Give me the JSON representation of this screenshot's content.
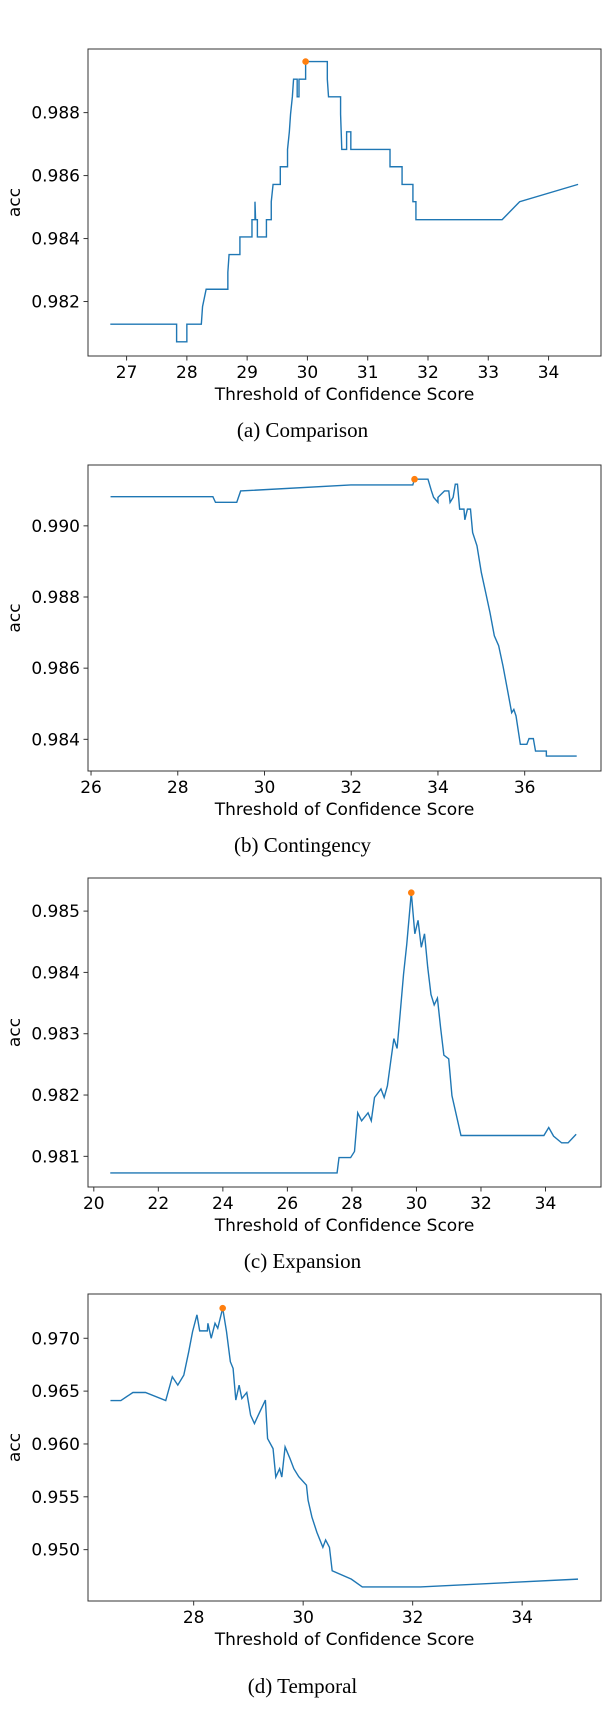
{
  "colors": {
    "line": "#1f77b4",
    "marker": "#ff7f0e",
    "axes": "#333333"
  },
  "chart_data": [
    {
      "type": "line",
      "caption": "(a) Comparison",
      "xlabel": "Threshold of Confidence Score",
      "ylabel": "acc",
      "xlim": [
        26.36,
        34.87
      ],
      "ylim": [
        0.98027,
        0.99002
      ],
      "xticks": [
        27,
        28,
        29,
        30,
        31,
        32,
        33,
        34
      ],
      "xtick_labels": [
        "27",
        "28",
        "29",
        "30",
        "31",
        "32",
        "33",
        "34"
      ],
      "yticks": [
        0.982,
        0.984,
        0.986,
        0.988
      ],
      "ytick_labels": [
        "0.982",
        "0.984",
        "0.986",
        "0.988"
      ],
      "grid": false,
      "series": [
        {
          "points": [
            [
              26.73,
              0.98128
            ],
            [
              27.83,
              0.98128
            ],
            [
              27.83,
              0.98072
            ],
            [
              28.0,
              0.98072
            ],
            [
              28.0,
              0.98128
            ],
            [
              28.24,
              0.98128
            ],
            [
              28.26,
              0.98184
            ],
            [
              28.32,
              0.98239
            ],
            [
              28.68,
              0.98239
            ],
            [
              28.68,
              0.98293
            ],
            [
              28.7,
              0.98349
            ],
            [
              28.88,
              0.98349
            ],
            [
              28.88,
              0.98405
            ],
            [
              29.08,
              0.98405
            ],
            [
              29.08,
              0.9846
            ],
            [
              29.13,
              0.9846
            ],
            [
              29.13,
              0.98517
            ],
            [
              29.14,
              0.9846
            ],
            [
              29.17,
              0.9846
            ],
            [
              29.17,
              0.98405
            ],
            [
              29.32,
              0.98405
            ],
            [
              29.32,
              0.9846
            ],
            [
              29.4,
              0.9846
            ],
            [
              29.4,
              0.98517
            ],
            [
              29.43,
              0.98572
            ],
            [
              29.55,
              0.98572
            ],
            [
              29.55,
              0.98628
            ],
            [
              29.67,
              0.98628
            ],
            [
              29.67,
              0.98683
            ],
            [
              29.7,
              0.98739
            ],
            [
              29.72,
              0.98795
            ],
            [
              29.75,
              0.9885
            ],
            [
              29.77,
              0.98906
            ],
            [
              29.83,
              0.98906
            ],
            [
              29.83,
              0.9885
            ],
            [
              29.86,
              0.9885
            ],
            [
              29.86,
              0.98906
            ],
            [
              29.97,
              0.98906
            ],
            [
              29.97,
              0.98962
            ],
            [
              30.33,
              0.98962
            ],
            [
              30.33,
              0.98906
            ],
            [
              30.35,
              0.9885
            ],
            [
              30.55,
              0.9885
            ],
            [
              30.55,
              0.98795
            ],
            [
              30.57,
              0.98683
            ],
            [
              30.65,
              0.98683
            ],
            [
              30.65,
              0.98739
            ],
            [
              30.72,
              0.98739
            ],
            [
              30.72,
              0.98683
            ],
            [
              31.37,
              0.98683
            ],
            [
              31.37,
              0.98628
            ],
            [
              31.57,
              0.98628
            ],
            [
              31.57,
              0.98572
            ],
            [
              31.75,
              0.98572
            ],
            [
              31.75,
              0.98517
            ],
            [
              31.8,
              0.98517
            ],
            [
              31.8,
              0.9846
            ],
            [
              33.23,
              0.9846
            ],
            [
              33.52,
              0.98517
            ],
            [
              34.49,
              0.98572
            ]
          ]
        }
      ],
      "max_point": [
        29.97,
        0.98962
      ]
    },
    {
      "type": "line",
      "caption": "(b) Contingency",
      "xlabel": "Threshold of Confidence Score",
      "ylabel": "acc",
      "xlim": [
        25.93,
        37.76
      ],
      "ylim": [
        0.98311,
        0.99171
      ],
      "xticks": [
        26,
        28,
        30,
        32,
        34,
        36
      ],
      "xtick_labels": [
        "26",
        "28",
        "30",
        "32",
        "34",
        "36"
      ],
      "yticks": [
        0.984,
        0.986,
        0.988,
        0.99
      ],
      "ytick_labels": [
        "0.984",
        "0.986",
        "0.988",
        "0.990"
      ],
      "grid": false,
      "series": [
        {
          "points": [
            [
              26.45,
              0.99082
            ],
            [
              28.81,
              0.99082
            ],
            [
              28.87,
              0.99066
            ],
            [
              29.36,
              0.99066
            ],
            [
              29.45,
              0.99098
            ],
            [
              31.99,
              0.99115
            ],
            [
              33.42,
              0.99115
            ],
            [
              33.46,
              0.99131
            ],
            [
              33.77,
              0.99131
            ],
            [
              33.85,
              0.99098
            ],
            [
              33.9,
              0.9908
            ],
            [
              34.0,
              0.99066
            ],
            [
              34.0,
              0.9908
            ],
            [
              34.15,
              0.99098
            ],
            [
              34.25,
              0.99098
            ],
            [
              34.28,
              0.99066
            ],
            [
              34.35,
              0.9908
            ],
            [
              34.4,
              0.99117
            ],
            [
              34.45,
              0.99117
            ],
            [
              34.5,
              0.99047
            ],
            [
              34.6,
              0.99047
            ],
            [
              34.62,
              0.99017
            ],
            [
              34.68,
              0.99047
            ],
            [
              34.75,
              0.99047
            ],
            [
              34.8,
              0.98981
            ],
            [
              34.9,
              0.98944
            ],
            [
              35.0,
              0.98869
            ],
            [
              35.1,
              0.98813
            ],
            [
              35.2,
              0.98756
            ],
            [
              35.3,
              0.98691
            ],
            [
              35.4,
              0.98663
            ],
            [
              35.5,
              0.98606
            ],
            [
              35.6,
              0.98541
            ],
            [
              35.7,
              0.98475
            ],
            [
              35.75,
              0.98484
            ],
            [
              35.8,
              0.98466
            ],
            [
              35.9,
              0.98386
            ],
            [
              36.05,
              0.98386
            ],
            [
              36.1,
              0.98402
            ],
            [
              36.2,
              0.98402
            ],
            [
              36.25,
              0.98367
            ],
            [
              36.5,
              0.98367
            ],
            [
              36.5,
              0.98353
            ],
            [
              37.2,
              0.98353
            ]
          ]
        }
      ],
      "max_point": [
        33.46,
        0.99131
      ]
    },
    {
      "type": "line",
      "caption": "(c) Expansion",
      "xlabel": "Threshold of Confidence Score",
      "ylabel": "acc",
      "xlim": [
        19.82,
        35.72
      ],
      "ylim": [
        0.9805,
        0.98554
      ],
      "xticks": [
        20,
        22,
        24,
        26,
        28,
        30,
        32,
        34
      ],
      "xtick_labels": [
        "20",
        "22",
        "24",
        "26",
        "28",
        "30",
        "32",
        "34"
      ],
      "yticks": [
        0.981,
        0.982,
        0.983,
        0.984,
        0.985
      ],
      "ytick_labels": [
        "0.981",
        "0.982",
        "0.983",
        "0.984",
        "0.985"
      ],
      "grid": false,
      "series": [
        {
          "points": [
            [
              20.51,
              0.98073
            ],
            [
              27.54,
              0.98073
            ],
            [
              27.6,
              0.98098
            ],
            [
              27.96,
              0.98098
            ],
            [
              28.08,
              0.98108
            ],
            [
              28.18,
              0.98171
            ],
            [
              28.3,
              0.98158
            ],
            [
              28.5,
              0.98171
            ],
            [
              28.6,
              0.98158
            ],
            [
              28.7,
              0.98196
            ],
            [
              28.9,
              0.9821
            ],
            [
              29.0,
              0.98196
            ],
            [
              29.1,
              0.98215
            ],
            [
              29.2,
              0.98254
            ],
            [
              29.3,
              0.98292
            ],
            [
              29.4,
              0.98276
            ],
            [
              29.5,
              0.98336
            ],
            [
              29.6,
              0.98397
            ],
            [
              29.7,
              0.98446
            ],
            [
              29.84,
              0.9853
            ],
            [
              29.95,
              0.98463
            ],
            [
              30.05,
              0.98485
            ],
            [
              30.15,
              0.98441
            ],
            [
              30.25,
              0.98463
            ],
            [
              30.35,
              0.98408
            ],
            [
              30.45,
              0.98364
            ],
            [
              30.55,
              0.98347
            ],
            [
              30.65,
              0.98358
            ],
            [
              30.75,
              0.98309
            ],
            [
              30.85,
              0.98265
            ],
            [
              31.0,
              0.98259
            ],
            [
              31.1,
              0.98199
            ],
            [
              31.38,
              0.98134
            ],
            [
              33.95,
              0.98134
            ],
            [
              34.1,
              0.98147
            ],
            [
              34.25,
              0.98133
            ],
            [
              34.5,
              0.98122
            ],
            [
              34.7,
              0.98122
            ],
            [
              34.95,
              0.98136
            ]
          ]
        }
      ],
      "max_point": [
        29.84,
        0.9853
      ]
    },
    {
      "type": "line",
      "caption": "(d) Temporal",
      "xlabel": "Threshold of Confidence Score",
      "ylabel": "acc",
      "xlim": [
        26.07,
        35.44
      ],
      "ylim": [
        0.94514,
        0.97419
      ],
      "xticks": [
        28,
        30,
        32,
        34
      ],
      "xtick_labels": [
        "28",
        "30",
        "32",
        "34"
      ],
      "yticks": [
        0.95,
        0.955,
        0.96,
        0.965,
        0.97
      ],
      "ytick_labels": [
        "0.950",
        "0.955",
        "0.960",
        "0.965",
        "0.970"
      ],
      "grid": false,
      "series": [
        {
          "points": [
            [
              26.48,
              0.96411
            ],
            [
              26.67,
              0.96411
            ],
            [
              26.89,
              0.96487
            ],
            [
              27.12,
              0.96487
            ],
            [
              27.49,
              0.96411
            ],
            [
              27.61,
              0.96636
            ],
            [
              27.71,
              0.96557
            ],
            [
              27.82,
              0.96652
            ],
            [
              27.91,
              0.96873
            ],
            [
              27.98,
              0.97063
            ],
            [
              28.06,
              0.97222
            ],
            [
              28.11,
              0.9707
            ],
            [
              28.25,
              0.9707
            ],
            [
              28.26,
              0.97142
            ],
            [
              28.32,
              0.97
            ],
            [
              28.39,
              0.97142
            ],
            [
              28.44,
              0.97095
            ],
            [
              28.53,
              0.97285
            ],
            [
              28.6,
              0.97063
            ],
            [
              28.67,
              0.96778
            ],
            [
              28.72,
              0.96715
            ],
            [
              28.77,
              0.96415
            ],
            [
              28.83,
              0.96557
            ],
            [
              28.88,
              0.9643
            ],
            [
              28.97,
              0.96487
            ],
            [
              29.04,
              0.96272
            ],
            [
              29.11,
              0.96193
            ],
            [
              29.18,
              0.96272
            ],
            [
              29.31,
              0.96415
            ],
            [
              29.35,
              0.96051
            ],
            [
              29.45,
              0.95956
            ],
            [
              29.5,
              0.95687
            ],
            [
              29.57,
              0.95766
            ],
            [
              29.61,
              0.95687
            ],
            [
              29.67,
              0.95972
            ],
            [
              29.76,
              0.95861
            ],
            [
              29.83,
              0.95766
            ],
            [
              29.92,
              0.9569
            ],
            [
              30.06,
              0.9561
            ],
            [
              30.09,
              0.95467
            ],
            [
              30.16,
              0.95308
            ],
            [
              30.25,
              0.95165
            ],
            [
              30.36,
              0.95022
            ],
            [
              30.41,
              0.95092
            ],
            [
              30.48,
              0.95022
            ],
            [
              30.53,
              0.948
            ],
            [
              30.88,
              0.94721
            ],
            [
              31.08,
              0.94647
            ],
            [
              32.14,
              0.94647
            ],
            [
              35.02,
              0.94721
            ]
          ]
        }
      ],
      "max_point": [
        28.53,
        0.97285
      ]
    }
  ]
}
